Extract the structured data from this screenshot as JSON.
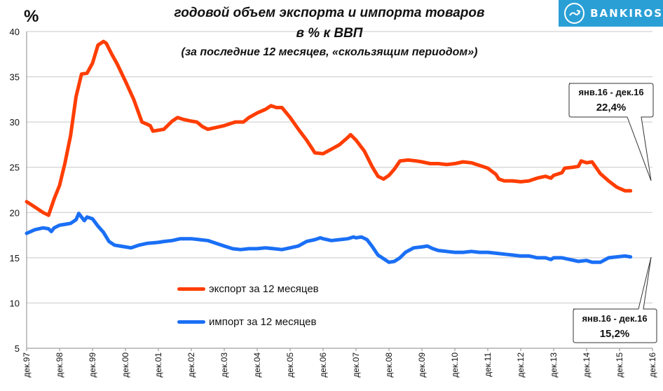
{
  "header": {
    "unit": "%",
    "title_line1": "годовой объем экспорта и импорта товаров",
    "title_line2": "в % к ВВП",
    "title_line3": "(за последние  12 месяцев, «скользящим  периодом»)"
  },
  "logo": {
    "text": "BANKIROS",
    "color": "#2a9fd6"
  },
  "legend": {
    "export_label": "экспорт за 12 месяцев",
    "import_label": "импорт за 12 месяцев"
  },
  "callouts": {
    "export": {
      "period": "янв.16 - дек.16",
      "value": "22,4%"
    },
    "import": {
      "period": "янв.16 - дек.16",
      "value": "15,2%"
    }
  },
  "chart_data": {
    "type": "line",
    "x_tick_labels": [
      "дек.97",
      "дек.98",
      "дек.99",
      "дек.00",
      "дек.01",
      "дек.02",
      "дек.03",
      "дек.04",
      "дек.05",
      "дек.06",
      "дек.07",
      "дек.08",
      "дек.09",
      "дек.10",
      "дек.11",
      "дек.12",
      "дек.13",
      "дек.14",
      "дек.15",
      "дек.16"
    ],
    "ylim": [
      5,
      40
    ],
    "yticks": [
      5,
      10,
      15,
      20,
      25,
      30,
      35,
      40
    ],
    "grid": "horizontal",
    "series": [
      {
        "name": "экспорт за 12 месяцев",
        "color": "#ff3d00",
        "points": [
          [
            "дек.97",
            21.2
          ],
          [
            "мар.98",
            20.6
          ],
          [
            "июн.98",
            20.0
          ],
          [
            "авг.98",
            19.7
          ],
          [
            "окт.98",
            21.5
          ],
          [
            "дек.98",
            23.0
          ],
          [
            "фев.99",
            25.5
          ],
          [
            "апр.99",
            28.5
          ],
          [
            "июн.99",
            32.8
          ],
          [
            "авг.99",
            35.3
          ],
          [
            "окт.99",
            35.4
          ],
          [
            "дек.99",
            36.5
          ],
          [
            "фев.00",
            38.5
          ],
          [
            "апр.00",
            38.9
          ],
          [
            "май.00",
            38.7
          ],
          [
            "июл.00",
            37.5
          ],
          [
            "сен.00",
            36.4
          ],
          [
            "дек.00",
            34.5
          ],
          [
            "мар.01",
            32.5
          ],
          [
            "июн.01",
            30.0
          ],
          [
            "сен.01",
            29.6
          ],
          [
            "окт.01",
            29.0
          ],
          [
            "дек.01",
            29.1
          ],
          [
            "фев.02",
            29.2
          ],
          [
            "май.02",
            30.1
          ],
          [
            "июл.02",
            30.5
          ],
          [
            "сен.02",
            30.3
          ],
          [
            "дек.02",
            30.1
          ],
          [
            "фев.03",
            30.0
          ],
          [
            "апр.03",
            29.5
          ],
          [
            "июн.03",
            29.2
          ],
          [
            "сен.03",
            29.4
          ],
          [
            "дек.03",
            29.6
          ],
          [
            "апр.04",
            30.0
          ],
          [
            "июл.04",
            30.0
          ],
          [
            "сен.04",
            30.5
          ],
          [
            "дек.04",
            31.0
          ],
          [
            "мар.05",
            31.4
          ],
          [
            "май.05",
            31.8
          ],
          [
            "июл.05",
            31.6
          ],
          [
            "сен.05",
            31.6
          ],
          [
            "дек.05",
            30.5
          ],
          [
            "мар.06",
            29.2
          ],
          [
            "июн.06",
            28.0
          ],
          [
            "сен.06",
            26.6
          ],
          [
            "дек.06",
            26.5
          ],
          [
            "мар.07",
            27.0
          ],
          [
            "июн.07",
            27.5
          ],
          [
            "сен.07",
            28.3
          ],
          [
            "окт.07",
            28.6
          ],
          [
            "дек.07",
            28.0
          ],
          [
            "мар.08",
            26.8
          ],
          [
            "июн.08",
            25.0
          ],
          [
            "авг.08",
            24.0
          ],
          [
            "окт.08",
            23.7
          ],
          [
            "дек.08",
            24.1
          ],
          [
            "фев.09",
            24.8
          ],
          [
            "апр.09",
            25.7
          ],
          [
            "июл.09",
            25.8
          ],
          [
            "окт.09",
            25.7
          ],
          [
            "дек.09",
            25.6
          ],
          [
            "мар.10",
            25.4
          ],
          [
            "июн.10",
            25.4
          ],
          [
            "сен.10",
            25.3
          ],
          [
            "дек.10",
            25.4
          ],
          [
            "мар.11",
            25.6
          ],
          [
            "июн.11",
            25.5
          ],
          [
            "сен.11",
            25.2
          ],
          [
            "дек.11",
            24.9
          ],
          [
            "мар.12",
            24.2
          ],
          [
            "апр.12",
            23.7
          ],
          [
            "июн.12",
            23.5
          ],
          [
            "сен.12",
            23.5
          ],
          [
            "дек.12",
            23.4
          ],
          [
            "мар.13",
            23.5
          ],
          [
            "июн.13",
            23.8
          ],
          [
            "сен.13",
            24.0
          ],
          [
            "ноя.13",
            23.8
          ],
          [
            "дек.13",
            24.1
          ],
          [
            "мар.14",
            24.4
          ],
          [
            "апр.14",
            24.9
          ],
          [
            "июл.14",
            25.0
          ],
          [
            "сен.14",
            25.1
          ],
          [
            "окт.14",
            25.7
          ],
          [
            "дек.14",
            25.5
          ],
          [
            "фев.15",
            25.6
          ],
          [
            "май.15",
            24.3
          ],
          [
            "авг.15",
            23.5
          ],
          [
            "ноя.15",
            22.8
          ],
          [
            "фев.16",
            22.4
          ],
          [
            "апр.16",
            22.4
          ]
        ]
      },
      {
        "name": "импорт за 12 месяцев",
        "color": "#1a6ff5",
        "points": [
          [
            "дек.97",
            17.7
          ],
          [
            "мар.98",
            18.1
          ],
          [
            "июн.98",
            18.3
          ],
          [
            "авг.98",
            18.2
          ],
          [
            "сен.98",
            17.9
          ],
          [
            "окт.98",
            18.3
          ],
          [
            "дек.98",
            18.6
          ],
          [
            "фев.99",
            18.7
          ],
          [
            "апр.99",
            18.8
          ],
          [
            "июн.99",
            19.2
          ],
          [
            "июл.99",
            19.9
          ],
          [
            "сен.99",
            19.1
          ],
          [
            "окт.99",
            19.5
          ],
          [
            "дек.99",
            19.3
          ],
          [
            "фев.00",
            18.5
          ],
          [
            "апр.00",
            17.8
          ],
          [
            "июн.00",
            16.8
          ],
          [
            "авг.00",
            16.4
          ],
          [
            "окт.00",
            16.3
          ],
          [
            "дек.00",
            16.2
          ],
          [
            "фев.01",
            16.1
          ],
          [
            "май.01",
            16.4
          ],
          [
            "авг.01",
            16.6
          ],
          [
            "дек.01",
            16.7
          ],
          [
            "фев.02",
            16.8
          ],
          [
            "май.02",
            16.9
          ],
          [
            "авг.02",
            17.1
          ],
          [
            "дек.02",
            17.1
          ],
          [
            "мар.03",
            17.0
          ],
          [
            "июн.03",
            16.9
          ],
          [
            "сен.03",
            16.6
          ],
          [
            "дек.03",
            16.3
          ],
          [
            "мар.04",
            16.0
          ],
          [
            "июн.04",
            15.9
          ],
          [
            "сен.04",
            16.0
          ],
          [
            "дек.04",
            16.0
          ],
          [
            "мар.05",
            16.1
          ],
          [
            "июн.05",
            16.0
          ],
          [
            "сен.05",
            15.9
          ],
          [
            "дек.05",
            16.1
          ],
          [
            "мар.06",
            16.3
          ],
          [
            "июн.06",
            16.8
          ],
          [
            "сен.06",
            17.0
          ],
          [
            "ноя.06",
            17.2
          ],
          [
            "дек.06",
            17.1
          ],
          [
            "мар.07",
            16.9
          ],
          [
            "июн.07",
            17.0
          ],
          [
            "сен.07",
            17.1
          ],
          [
            "ноя.07",
            17.3
          ],
          [
            "дек.07",
            17.2
          ],
          [
            "фев.08",
            17.3
          ],
          [
            "апр.08",
            17.0
          ],
          [
            "июн.08",
            16.2
          ],
          [
            "авг.08",
            15.3
          ],
          [
            "окт.08",
            14.9
          ],
          [
            "дек.08",
            14.5
          ],
          [
            "фев.09",
            14.6
          ],
          [
            "апр.09",
            15.0
          ],
          [
            "июн.09",
            15.6
          ],
          [
            "сен.09",
            16.1
          ],
          [
            "дек.09",
            16.2
          ],
          [
            "фев.10",
            16.3
          ],
          [
            "апр.10",
            16.0
          ],
          [
            "июн.10",
            15.8
          ],
          [
            "сен.10",
            15.7
          ],
          [
            "дек.10",
            15.6
          ],
          [
            "мар.11",
            15.6
          ],
          [
            "июн.11",
            15.7
          ],
          [
            "сен.11",
            15.6
          ],
          [
            "дек.11",
            15.6
          ],
          [
            "мар.12",
            15.5
          ],
          [
            "июн.12",
            15.4
          ],
          [
            "сен.12",
            15.3
          ],
          [
            "дек.12",
            15.2
          ],
          [
            "мар.13",
            15.2
          ],
          [
            "июн.13",
            15.0
          ],
          [
            "сен.13",
            15.0
          ],
          [
            "ноя.13",
            14.8
          ],
          [
            "дек.13",
            15.0
          ],
          [
            "мар.14",
            15.0
          ],
          [
            "июн.14",
            14.8
          ],
          [
            "сен.14",
            14.6
          ],
          [
            "дек.14",
            14.7
          ],
          [
            "фев.15",
            14.5
          ],
          [
            "май.15",
            14.5
          ],
          [
            "авг.15",
            15.0
          ],
          [
            "ноя.15",
            15.1
          ],
          [
            "фев.16",
            15.2
          ],
          [
            "апр.16",
            15.1
          ]
        ]
      }
    ]
  }
}
